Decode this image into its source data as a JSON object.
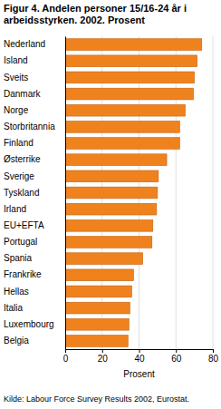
{
  "chart_data": {
    "type": "bar",
    "orientation": "horizontal",
    "title": "Figur 4. Andelen personer 15/16-24 år i arbeidsstyrken. 2002. Prosent",
    "x_label": "Prosent",
    "source": "Kilde: Labour Force Survey Results 2002, Eurostat.",
    "categories": [
      "Nederland",
      "Island",
      "Sveits",
      "Danmark",
      "Norge",
      "Storbritannia",
      "Finland",
      "Østerrike",
      "Sverige",
      "Tyskland",
      "Irland",
      "EU+EFTA",
      "Portugal",
      "Spania",
      "Frankrike",
      "Hellas",
      "Italia",
      "Luxembourg",
      "Belgia"
    ],
    "values": [
      74,
      71.5,
      70,
      69.5,
      65,
      62,
      62,
      55,
      50.5,
      50,
      49.5,
      47.5,
      47,
      42,
      37,
      36,
      35,
      34.5,
      34
    ],
    "color": "#f0821e",
    "xlim": [
      0,
      80
    ],
    "xticks": [
      0,
      20,
      40,
      60,
      80
    ],
    "grid": true
  }
}
